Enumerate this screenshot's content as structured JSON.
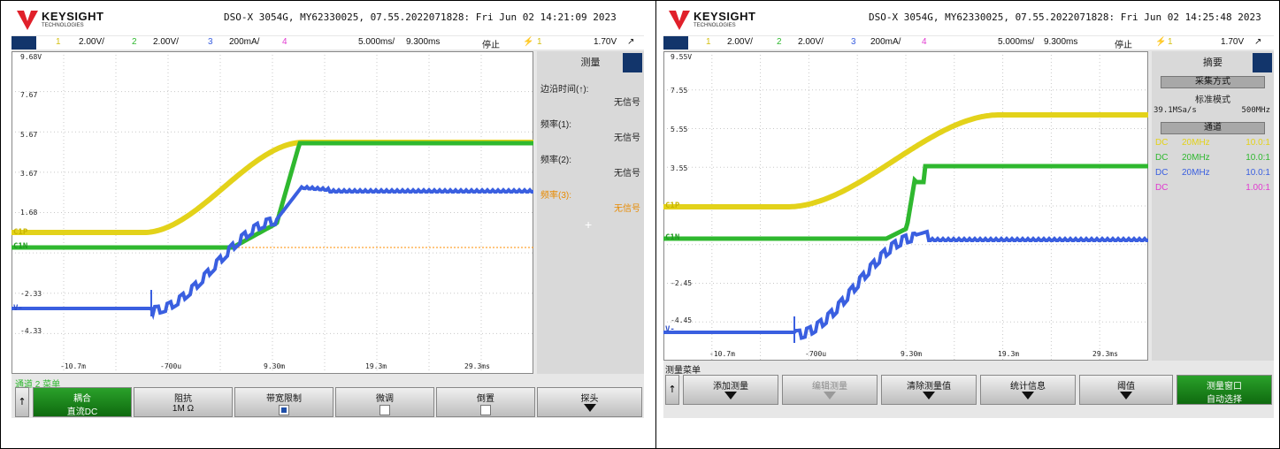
{
  "left": {
    "brand": "KEYSIGHT",
    "brand_sub": "TECHNOLOGIES",
    "info": "DSO-X 3054G, MY62330025, 07.55.2022071828: Fri Jun 02 14:21:09 2023",
    "ch1_num": "1",
    "ch1_scale": "2.00V/",
    "ch2_num": "2",
    "ch2_scale": "2.00V/",
    "ch3_num": "3",
    "ch3_scale": "200mA/",
    "ch4_num": "4",
    "timebase": "5.000ms/",
    "delay": "9.300ms",
    "state": "停止",
    "trig_num": "1",
    "trig_level": "1.70V",
    "y_labels": [
      "9.68V",
      "7.67",
      "5.67",
      "3.67",
      "1.68",
      "-2.33",
      "-4.33"
    ],
    "x_labels": [
      "-10.7m",
      "-700u",
      "9.30m",
      "19.3m",
      "29.3ms"
    ],
    "markers": {
      "c1p": "C1P",
      "c1n": "C1N",
      "v": "V-"
    },
    "sidebar": {
      "title": "测量",
      "rows": [
        {
          "label": "边沿时间(↑):",
          "value": "无信号"
        },
        {
          "label": "频率(1):",
          "value": "无信号"
        },
        {
          "label": "频率(2):",
          "value": "无信号"
        },
        {
          "label": "频率(3):",
          "value": "无信号"
        }
      ]
    },
    "status": "通道 2 菜单",
    "softkeys": [
      {
        "l1": "耦合",
        "l2": "直流DC"
      },
      {
        "l1": "阻抗",
        "l2": "1M Ω"
      },
      {
        "l1": "带宽限制",
        "l2": ""
      },
      {
        "l1": "微调",
        "l2": ""
      },
      {
        "l1": "倒置",
        "l2": ""
      },
      {
        "l1": "探头",
        "l2": ""
      }
    ],
    "up_label": "↑"
  },
  "right": {
    "brand": "KEYSIGHT",
    "brand_sub": "TECHNOLOGIES",
    "info": "DSO-X 3054G, MY62330025, 07.55.2022071828: Fri Jun 02 14:25:48 2023",
    "ch1_num": "1",
    "ch1_scale": "2.00V/",
    "ch2_num": "2",
    "ch2_scale": "2.00V/",
    "ch3_num": "3",
    "ch3_scale": "200mA/",
    "ch4_num": "4",
    "timebase": "5.000ms/",
    "delay": "9.300ms",
    "state": "停止",
    "trig_num": "1",
    "trig_level": "1.70V",
    "y_labels": [
      "9.55V",
      "7.55",
      "5.55",
      "3.55",
      "-2.45",
      "-4.45"
    ],
    "x_labels": [
      "-10.7m",
      "-700u",
      "9.30m",
      "19.3m",
      "29.3ms"
    ],
    "markers": {
      "c1p": "C1P",
      "c1n": "C1N",
      "v": "V-"
    },
    "sidebar": {
      "title": "摘要",
      "acq_btn": "采集方式",
      "acq_mode": "标准模式",
      "acq_rate": "39.1MSa/s",
      "acq_bw": "500MHz",
      "ch_btn": "通道",
      "channels": [
        {
          "cpl": "DC",
          "bw": "20MHz",
          "ratio": "10.0:1",
          "color": "#e3d21a"
        },
        {
          "cpl": "DC",
          "bw": "20MHz",
          "ratio": "10.0:1",
          "color": "#2fb82f"
        },
        {
          "cpl": "DC",
          "bw": "20MHz",
          "ratio": "10.0:1",
          "color": "#3a5fe0"
        },
        {
          "cpl": "DC",
          "bw": "",
          "ratio": "1.00:1",
          "color": "#e03ad0"
        }
      ]
    },
    "status": "测量菜单",
    "softkeys": [
      {
        "l1": "添加测量"
      },
      {
        "l1": "编辑测量"
      },
      {
        "l1": "清除测量值"
      },
      {
        "l1": "统计信息"
      },
      {
        "l1": "阈值"
      },
      {
        "l1": "测量窗口",
        "l2": "自动选择"
      }
    ],
    "up_label": "↑"
  },
  "colors": {
    "ch1": "#e3d21a",
    "ch2": "#2fb82f",
    "ch3": "#3a5fe0",
    "ch4": "#e03ad0",
    "accent": "#12356b",
    "trigger": "#ff8c00",
    "softkey_active": "#1a8a1a"
  }
}
